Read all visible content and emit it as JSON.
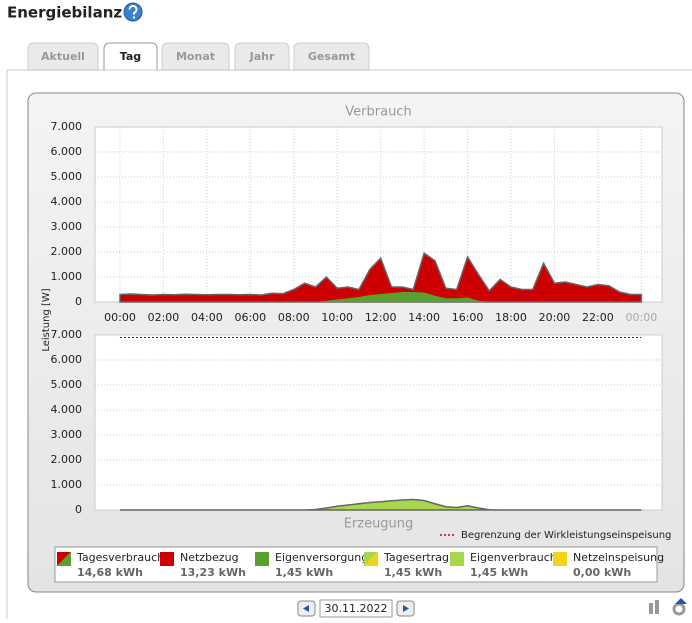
{
  "header": {
    "title": "Energiebilanz"
  },
  "tabs": [
    "Aktuell",
    "Tag",
    "Monat",
    "Jahr",
    "Gesamt"
  ],
  "active_tab": 1,
  "y_axis_label": "Leistung [W]",
  "chart_data": [
    {
      "type": "area",
      "title": "Verbrauch",
      "x": [
        0,
        0.5,
        1,
        1.5,
        2,
        2.5,
        3,
        3.5,
        4,
        4.5,
        5,
        5.5,
        6,
        6.5,
        7,
        7.5,
        8,
        8.5,
        9,
        9.5,
        10,
        10.5,
        11,
        11.5,
        12,
        12.5,
        13,
        13.5,
        14,
        14.5,
        15,
        15.5,
        16,
        16.5,
        17,
        17.5,
        18,
        18.5,
        19,
        19.5,
        20,
        20.5,
        21,
        21.5,
        22,
        22.5,
        23,
        23.5,
        24
      ],
      "series": [
        {
          "name": "Tagesverbrauch",
          "color": "#cc0000",
          "values": [
            300,
            320,
            300,
            280,
            300,
            290,
            310,
            300,
            290,
            300,
            300,
            290,
            300,
            280,
            350,
            330,
            500,
            750,
            600,
            1000,
            550,
            600,
            500,
            1300,
            1750,
            600,
            600,
            500,
            1950,
            1650,
            550,
            500,
            1800,
            1100,
            450,
            900,
            600,
            500,
            500,
            1550,
            750,
            800,
            700,
            600,
            700,
            650,
            400,
            300,
            300
          ]
        },
        {
          "name": "Eigenversorgung",
          "color": "#5aa02c",
          "values": [
            0,
            0,
            0,
            0,
            0,
            0,
            0,
            0,
            0,
            0,
            0,
            0,
            0,
            0,
            0,
            0,
            0,
            0,
            0,
            50,
            100,
            150,
            200,
            280,
            320,
            360,
            400,
            400,
            380,
            250,
            150,
            150,
            180,
            50,
            0,
            0,
            0,
            0,
            0,
            0,
            0,
            0,
            0,
            0,
            0,
            0,
            0,
            0,
            0
          ]
        }
      ],
      "xlim": [
        -1.15,
        24.95
      ],
      "xticks": [
        {
          "value": 0,
          "label": "00:00"
        },
        {
          "value": 2,
          "label": "02:00"
        },
        {
          "value": 4,
          "label": "04:00"
        },
        {
          "value": 6,
          "label": "06:00"
        },
        {
          "value": 8,
          "label": "08:00"
        },
        {
          "value": 10,
          "label": "10:00"
        },
        {
          "value": 12,
          "label": "12:00"
        },
        {
          "value": 14,
          "label": "14:00"
        },
        {
          "value": 16,
          "label": "16:00"
        },
        {
          "value": 18,
          "label": "18:00"
        },
        {
          "value": 20,
          "label": "20:00"
        },
        {
          "value": 22,
          "label": "22:00"
        },
        {
          "value": 24,
          "label": "00:00"
        }
      ],
      "ylim": [
        0,
        7000
      ],
      "yticks": [
        0,
        {
          "value": 1000,
          "label": "1.000"
        },
        {
          "value": 2000,
          "label": "2.000"
        },
        {
          "value": 3000,
          "label": "3.000"
        },
        {
          "value": 4000,
          "label": "4.000"
        },
        {
          "value": 5000,
          "label": "5.000"
        },
        {
          "value": 6000,
          "label": "6.000"
        },
        {
          "value": 7000,
          "label": "7.000"
        }
      ],
      "grid": true
    },
    {
      "type": "area",
      "title": "Erzeugung",
      "x": [
        0,
        0.5,
        1,
        1.5,
        2,
        2.5,
        3,
        3.5,
        4,
        4.5,
        5,
        5.5,
        6,
        6.5,
        7,
        7.5,
        8,
        8.5,
        9,
        9.5,
        10,
        10.5,
        11,
        11.5,
        12,
        12.5,
        13,
        13.5,
        14,
        14.5,
        15,
        15.5,
        16,
        16.5,
        17,
        17.5,
        18,
        18.5,
        19,
        19.5,
        20,
        20.5,
        21,
        21.5,
        22,
        22.5,
        23,
        23.5,
        24
      ],
      "series": [
        {
          "name": "Tagesertrag",
          "color": "#a6d84a",
          "values": [
            0,
            0,
            0,
            0,
            0,
            0,
            0,
            0,
            0,
            0,
            0,
            0,
            0,
            0,
            0,
            0,
            0,
            0,
            20,
            80,
            150,
            200,
            250,
            300,
            330,
            370,
            400,
            420,
            380,
            250,
            130,
            100,
            170,
            80,
            10,
            0,
            0,
            0,
            0,
            0,
            0,
            0,
            0,
            0,
            0,
            0,
            0,
            0,
            0
          ]
        }
      ],
      "xlim": [
        -1.15,
        24.95
      ],
      "ylim": [
        0,
        7000
      ],
      "yticks": [
        0,
        {
          "value": 1000,
          "label": "1.000"
        },
        {
          "value": 2000,
          "label": "2.000"
        },
        {
          "value": 3000,
          "label": "3.000"
        },
        {
          "value": 4000,
          "label": "4.000"
        },
        {
          "value": 5000,
          "label": "5.000"
        },
        {
          "value": 6000,
          "label": "6.000"
        },
        {
          "value": 7000,
          "label": "7.000"
        }
      ],
      "grid": true,
      "limit": {
        "value": 6900,
        "label": "Begrenzung der Wirkleistungseinspeisung",
        "color": "#cc0000"
      }
    }
  ],
  "legend": [
    {
      "name": "Tagesverbrauch",
      "value": "14,68 kWh",
      "colors": [
        "#cc0000",
        "#5aa02c"
      ]
    },
    {
      "name": "Netzbezug",
      "value": "13,23 kWh",
      "colors": [
        "#cc0000"
      ]
    },
    {
      "name": "Eigenversorgung",
      "value": "1,45 kWh",
      "colors": [
        "#5aa02c"
      ]
    },
    {
      "name": "Tagesertrag",
      "value": "1,45 kWh",
      "colors": [
        "#a6d84a",
        "#f5d21a"
      ]
    },
    {
      "name": "Eigenverbrauch",
      "value": "1,45 kWh",
      "colors": [
        "#a6d84a"
      ]
    },
    {
      "name": "Netzeinspeisung",
      "value": "0,00 kWh",
      "colors": [
        "#f5d21a"
      ]
    }
  ],
  "date": "30.11.2022"
}
